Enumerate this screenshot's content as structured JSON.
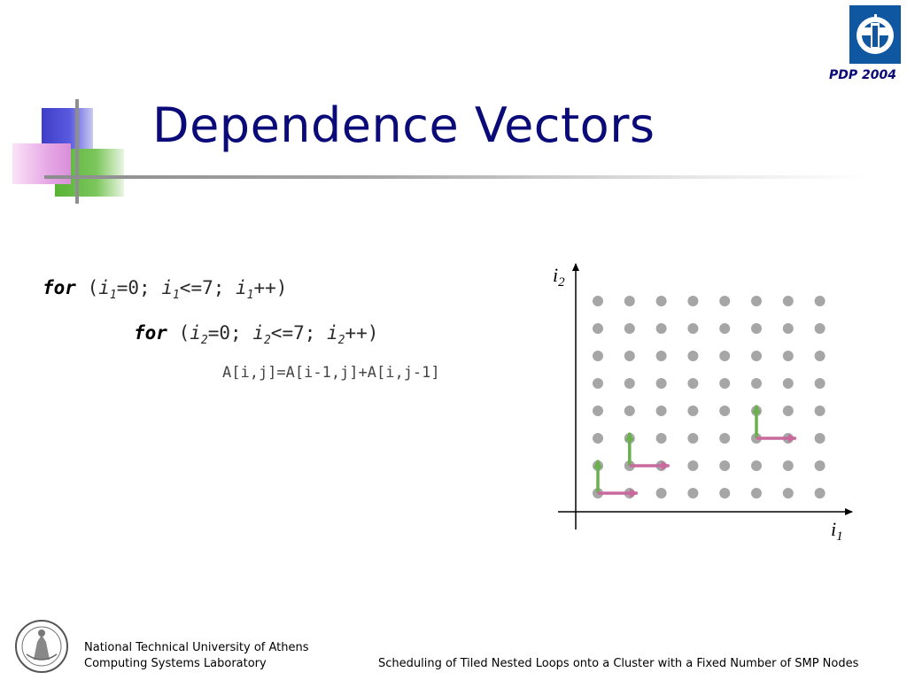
{
  "slide": {
    "title": "Dependence Vectors",
    "conference": "PDP 2004"
  },
  "code": {
    "outer": {
      "keyword": "for",
      "open": "(",
      "v1": "i",
      "s1": "1",
      "t1": "=0; ",
      "v2": "i",
      "s2": "1",
      "t2": "<=7; ",
      "v3": "i",
      "s3": "1",
      "t3": "++)"
    },
    "inner": {
      "keyword": "for",
      "open": "(",
      "v1": "i",
      "s1": "2",
      "t1": "=0; ",
      "v2": "i",
      "s2": "2",
      "t2": "<=7; ",
      "v3": "i",
      "s3": "2",
      "t3": "++)"
    },
    "statement": "A[i,j]=A[i-1,j]+A[i,j-1]"
  },
  "diagram": {
    "y_axis_label": "i",
    "y_axis_sub": "2",
    "x_axis_label": "i",
    "x_axis_sub": "1",
    "grid": {
      "cols": 8,
      "rows": 8
    },
    "colors": {
      "point": "#a6a6a6",
      "axis": "#000000",
      "vec_i2": "#6ab04c",
      "vec_i1": "#c86a9e"
    },
    "dependence_vectors": [
      {
        "from": [
          0,
          0
        ],
        "vector": [
          0,
          1
        ],
        "axis": "i2"
      },
      {
        "from": [
          0,
          0
        ],
        "vector": [
          1,
          0
        ],
        "axis": "i1"
      },
      {
        "from": [
          1,
          1
        ],
        "vector": [
          0,
          1
        ],
        "axis": "i2"
      },
      {
        "from": [
          1,
          1
        ],
        "vector": [
          1,
          0
        ],
        "axis": "i1"
      },
      {
        "from": [
          5,
          2
        ],
        "vector": [
          0,
          1
        ],
        "axis": "i2"
      },
      {
        "from": [
          5,
          2
        ],
        "vector": [
          1,
          0
        ],
        "axis": "i1"
      }
    ]
  },
  "footer": {
    "institution": "National Technical University of Athens",
    "lab": "Computing Systems Laboratory",
    "paper_title": "Scheduling of Tiled Nested Loops onto a Cluster with a Fixed Number of SMP Nodes"
  }
}
